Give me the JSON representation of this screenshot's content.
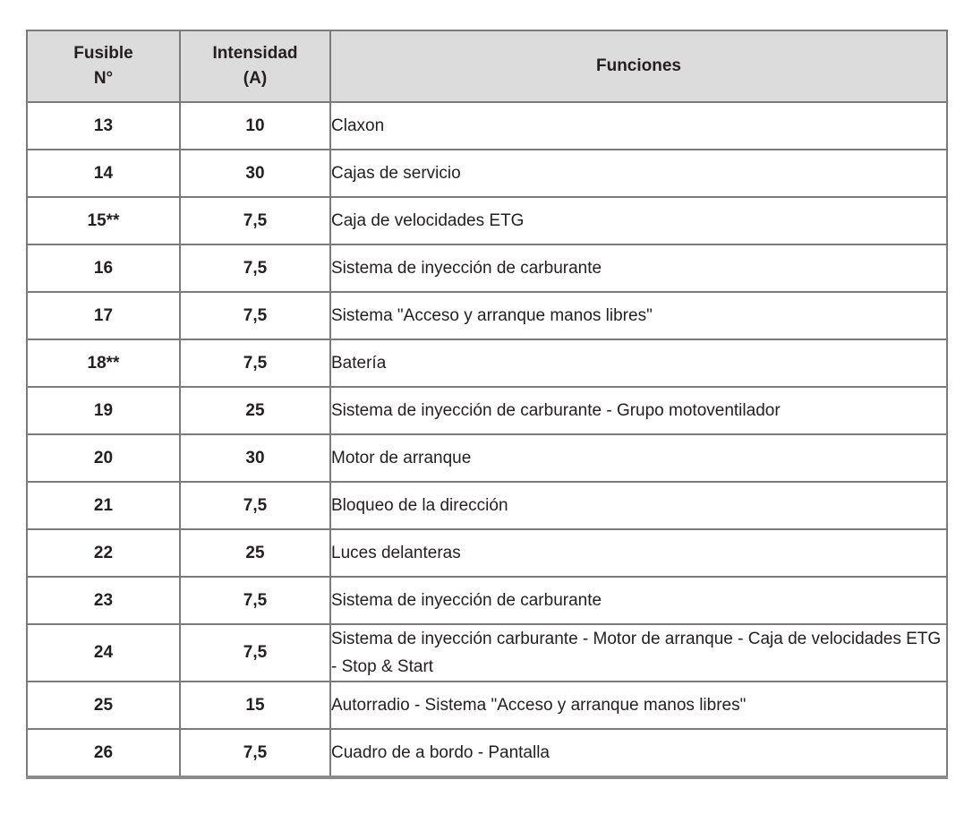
{
  "colors": {
    "header_background": "#dcdcdc",
    "border": "#7b7b7b",
    "bottom_border": "#8a8a8a",
    "text": "#231f20",
    "page_background": "#ffffff"
  },
  "table": {
    "headers": {
      "fuse_line1": "Fusible",
      "fuse_line2": "N°",
      "amp_line1": "Intensidad",
      "amp_line2": "(A)",
      "functions": "Funciones"
    },
    "rows": [
      {
        "fuse": "13",
        "amp": "10",
        "func": "Claxon"
      },
      {
        "fuse": "14",
        "amp": "30",
        "func": "Cajas de servicio"
      },
      {
        "fuse": "15**",
        "amp": "7,5",
        "func": "Caja de velocidades ETG"
      },
      {
        "fuse": "16",
        "amp": "7,5",
        "func": "Sistema de inyección de carburante"
      },
      {
        "fuse": "17",
        "amp": "7,5",
        "func": "Sistema \"Acceso y arranque manos libres\""
      },
      {
        "fuse": "18**",
        "amp": "7,5",
        "func": "Batería"
      },
      {
        "fuse": "19",
        "amp": "25",
        "func": "Sistema de inyección de carburante - Grupo motoventilador"
      },
      {
        "fuse": "20",
        "amp": "30",
        "func": "Motor de arranque"
      },
      {
        "fuse": "21",
        "amp": "7,5",
        "func": "Bloqueo de la dirección"
      },
      {
        "fuse": "22",
        "amp": "25",
        "func": "Luces delanteras"
      },
      {
        "fuse": "23",
        "amp": "7,5",
        "func": "Sistema de inyección de carburante"
      },
      {
        "fuse": "24",
        "amp": "7,5",
        "func": "Sistema de inyección carburante - Motor de arranque - Caja de velocidades ETG - Stop & Start"
      },
      {
        "fuse": "25",
        "amp": "15",
        "func": "Autorradio - Sistema \"Acceso y arranque manos libres\""
      },
      {
        "fuse": "26",
        "amp": "7,5",
        "func": "Cuadro de a bordo - Pantalla"
      }
    ]
  }
}
